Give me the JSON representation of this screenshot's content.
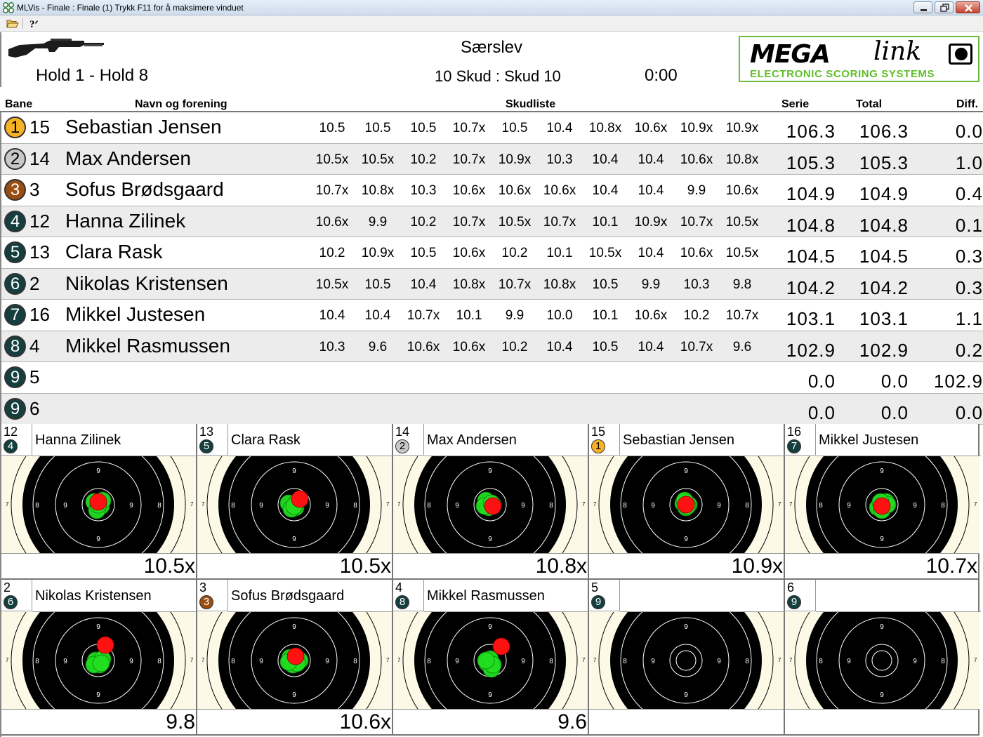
{
  "window": {
    "title": "MLVis - Finale : Finale (1) Trykk F11 for å maksimere vinduet",
    "minimize_icon": "minimize-icon",
    "restore_icon": "restore-icon",
    "close_icon": "close-icon"
  },
  "toolbar": {
    "open_icon": "folder-open-icon",
    "help_icon": "help-icon"
  },
  "header": {
    "hold": "Hold 1 - Hold 8",
    "venue": "Særslev",
    "shots": "10 Skud : Skud 10",
    "clock": "0:00",
    "logo_main": "MEGA",
    "logo_script": "link",
    "logo_sub": "ELECTRONIC SCORING SYSTEMS"
  },
  "columns": {
    "bane": "Bane",
    "navn": "Navn og forening",
    "skudliste": "Skudliste",
    "serie": "Serie",
    "total": "Total",
    "diff": "Diff."
  },
  "colors": {
    "gold": "#f7b227",
    "silver": "#c8c8c8",
    "bronze": "#9a4d11",
    "teal": "#153e3e",
    "hit_green": "#22dd22",
    "last_shot_red": "#ff1111",
    "target_paper": "#fcf9e6"
  },
  "results": [
    {
      "rank": "1",
      "medal": "gold",
      "lane": "15",
      "name": "Sebastian Jensen",
      "shots": [
        "10.5",
        "10.5",
        "10.5",
        "10.7x",
        "10.5",
        "10.4",
        "10.8x",
        "10.6x",
        "10.9x",
        "10.9x"
      ],
      "serie": "106.3",
      "total": "106.3",
      "diff": "0.0"
    },
    {
      "rank": "2",
      "medal": "silver",
      "lane": "14",
      "name": "Max Andersen",
      "shots": [
        "10.5x",
        "10.5x",
        "10.2",
        "10.7x",
        "10.9x",
        "10.3",
        "10.4",
        "10.4",
        "10.6x",
        "10.8x"
      ],
      "serie": "105.3",
      "total": "105.3",
      "diff": "1.0"
    },
    {
      "rank": "3",
      "medal": "bronze",
      "lane": "3",
      "name": "Sofus Brødsgaard",
      "shots": [
        "10.7x",
        "10.8x",
        "10.3",
        "10.6x",
        "10.6x",
        "10.6x",
        "10.4",
        "10.4",
        "9.9",
        "10.6x"
      ],
      "serie": "104.9",
      "total": "104.9",
      "diff": "0.4"
    },
    {
      "rank": "4",
      "medal": "teal",
      "lane": "12",
      "name": "Hanna Zilinek",
      "shots": [
        "10.6x",
        "9.9",
        "10.2",
        "10.7x",
        "10.5x",
        "10.7x",
        "10.1",
        "10.9x",
        "10.7x",
        "10.5x"
      ],
      "serie": "104.8",
      "total": "104.8",
      "diff": "0.1"
    },
    {
      "rank": "5",
      "medal": "teal",
      "lane": "13",
      "name": "Clara Rask",
      "shots": [
        "10.2",
        "10.9x",
        "10.5",
        "10.6x",
        "10.2",
        "10.1",
        "10.5x",
        "10.4",
        "10.6x",
        "10.5x"
      ],
      "serie": "104.5",
      "total": "104.5",
      "diff": "0.3"
    },
    {
      "rank": "6",
      "medal": "teal",
      "lane": "2",
      "name": "Nikolas Kristensen",
      "shots": [
        "10.5x",
        "10.5",
        "10.4",
        "10.8x",
        "10.7x",
        "10.8x",
        "10.5",
        "9.9",
        "10.3",
        "9.8"
      ],
      "serie": "104.2",
      "total": "104.2",
      "diff": "0.3"
    },
    {
      "rank": "7",
      "medal": "teal",
      "lane": "16",
      "name": "Mikkel Justesen",
      "shots": [
        "10.4",
        "10.4",
        "10.7x",
        "10.1",
        "9.9",
        "10.0",
        "10.1",
        "10.6x",
        "10.2",
        "10.7x"
      ],
      "serie": "103.1",
      "total": "103.1",
      "diff": "1.1"
    },
    {
      "rank": "8",
      "medal": "teal",
      "lane": "4",
      "name": "Mikkel Rasmussen",
      "shots": [
        "10.3",
        "9.6",
        "10.6x",
        "10.6x",
        "10.2",
        "10.4",
        "10.5",
        "10.4",
        "10.7x",
        "9.6"
      ],
      "serie": "102.9",
      "total": "102.9",
      "diff": "0.2"
    },
    {
      "rank": "9",
      "medal": "teal",
      "lane": "5",
      "name": "",
      "shots": [],
      "serie": "0.0",
      "total": "0.0",
      "diff": "102.9"
    },
    {
      "rank": "9",
      "medal": "teal",
      "lane": "6",
      "name": "",
      "shots": [],
      "serie": "0.0",
      "total": "0.0",
      "diff": "0.0"
    }
  ],
  "ring_labels": {
    "nine": "9",
    "eight": "8",
    "seven": "7"
  },
  "targets": [
    {
      "lane": "12",
      "rank": "4",
      "medal": "teal",
      "name": "Hanna Zilinek",
      "last": "10.5x",
      "has_shots": true
    },
    {
      "lane": "13",
      "rank": "5",
      "medal": "teal",
      "name": "Clara Rask",
      "last": "10.5x",
      "has_shots": true
    },
    {
      "lane": "14",
      "rank": "2",
      "medal": "silver",
      "name": "Max Andersen",
      "last": "10.8x",
      "has_shots": true
    },
    {
      "lane": "15",
      "rank": "1",
      "medal": "gold",
      "name": "Sebastian Jensen",
      "last": "10.9x",
      "has_shots": true
    },
    {
      "lane": "16",
      "rank": "7",
      "medal": "teal",
      "name": "Mikkel Justesen",
      "last": "10.7x",
      "has_shots": true
    },
    {
      "lane": "2",
      "rank": "6",
      "medal": "teal",
      "name": "Nikolas Kristensen",
      "last": "9.8",
      "has_shots": true
    },
    {
      "lane": "3",
      "rank": "3",
      "medal": "bronze",
      "name": "Sofus Brødsgaard",
      "last": "10.6x",
      "has_shots": true
    },
    {
      "lane": "4",
      "rank": "8",
      "medal": "teal",
      "name": "Mikkel Rasmussen",
      "last": "9.6",
      "has_shots": true
    },
    {
      "lane": "5",
      "rank": "9",
      "medal": "teal",
      "name": "",
      "last": "",
      "has_shots": false
    },
    {
      "lane": "6",
      "rank": "9",
      "medal": "teal",
      "name": "",
      "last": "",
      "has_shots": false
    }
  ]
}
